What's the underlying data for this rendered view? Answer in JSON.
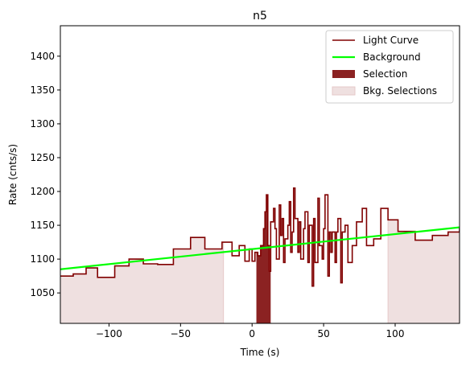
{
  "chart_data": {
    "type": "line",
    "title": "n5",
    "xlabel": "Time (s)",
    "ylabel": "Rate (cnts/s)",
    "xlim": [
      -134,
      145
    ],
    "ylim": [
      1005,
      1445
    ],
    "xticks": [
      -100,
      -50,
      0,
      50,
      100
    ],
    "xtick_labels": [
      "−100",
      "−50",
      "0",
      "50",
      "100"
    ],
    "yticks": [
      1050,
      1100,
      1150,
      1200,
      1250,
      1300,
      1350,
      1400
    ],
    "ytick_labels": [
      "1050",
      "1100",
      "1150",
      "1200",
      "1250",
      "1300",
      "1350",
      "1400"
    ],
    "grid": false,
    "legend_position": "top-right",
    "colors": {
      "light_curve": "#800000",
      "background": "#00ff00",
      "selection": "#8b2222",
      "bkg_selection": "#efe0e0",
      "bkg_selection_edge": "#e6c8c8"
    },
    "legend": [
      {
        "label": "Light Curve",
        "kind": "line",
        "color": "#800000"
      },
      {
        "label": "Background",
        "kind": "line",
        "color": "#00ff00"
      },
      {
        "label": "Selection",
        "kind": "patch",
        "color": "#8b2222"
      },
      {
        "label": "Bkg. Selections",
        "kind": "patch",
        "color": "#efe0e0"
      }
    ],
    "light_curve": {
      "name": "Light Curve",
      "edges": [
        -134,
        -125,
        -116,
        -108,
        -96,
        -86,
        -76,
        -66,
        -55,
        -43,
        -33,
        -21,
        -14,
        -9,
        -5,
        -2,
        0,
        2,
        4,
        6,
        8,
        9,
        10,
        11,
        12,
        13,
        15,
        16,
        17,
        19,
        20,
        21,
        22,
        23,
        25,
        26,
        27,
        28,
        29,
        30,
        32,
        33,
        34,
        36,
        37,
        39,
        40,
        42,
        43,
        44,
        46,
        47,
        49,
        50,
        51,
        53,
        54,
        55,
        56,
        58,
        59,
        60,
        62,
        63,
        65,
        67,
        70,
        73,
        77,
        80,
        85,
        90,
        95,
        102,
        114,
        126,
        137,
        145
      ],
      "values": [
        1075,
        1078,
        1087,
        1073,
        1090,
        1100,
        1093,
        1092,
        1115,
        1132,
        1115,
        1125,
        1105,
        1120,
        1097,
        1115,
        1097,
        1110,
        1105,
        1120,
        1145,
        1170,
        1195,
        1120,
        1082,
        1155,
        1175,
        1145,
        1100,
        1180,
        1135,
        1160,
        1095,
        1130,
        1150,
        1185,
        1110,
        1140,
        1205,
        1160,
        1110,
        1155,
        1100,
        1145,
        1170,
        1095,
        1150,
        1060,
        1160,
        1095,
        1190,
        1120,
        1100,
        1145,
        1195,
        1075,
        1140,
        1110,
        1140,
        1095,
        1140,
        1160,
        1065,
        1140,
        1150,
        1095,
        1120,
        1155,
        1175,
        1120,
        1130,
        1175,
        1158,
        1141,
        1128,
        1135,
        1140,
        1147
      ],
      "note_values": "step heights in cnts/s"
    },
    "background_fit": {
      "name": "Background",
      "x": [
        -134,
        145
      ],
      "y": [
        1085,
        1147
      ]
    },
    "selection": {
      "name": "Selection",
      "x_range": [
        3,
        13
      ]
    },
    "bkg_selections": {
      "name": "Bkg. Selections",
      "ranges": [
        [
          -134,
          -20
        ],
        [
          95,
          145
        ]
      ]
    }
  }
}
